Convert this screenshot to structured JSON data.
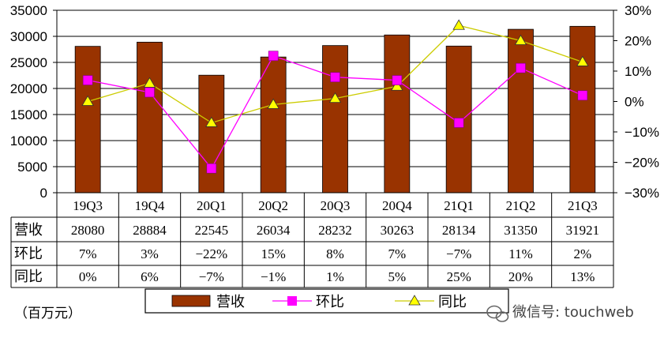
{
  "chart_data": {
    "type": "bar",
    "categories": [
      "19Q3",
      "19Q4",
      "20Q1",
      "20Q2",
      "20Q3",
      "20Q4",
      "21Q1",
      "21Q2",
      "21Q3"
    ],
    "series": [
      {
        "name": "营收",
        "type": "bar",
        "axis": "left",
        "color": "#993300",
        "values": [
          28080,
          28884,
          22545,
          26034,
          28232,
          30263,
          28134,
          31350,
          31921
        ]
      },
      {
        "name": "环比",
        "type": "line",
        "axis": "right",
        "color": "#FF00FF",
        "marker": "square",
        "values": [
          7,
          3,
          -22,
          15,
          8,
          7,
          -7,
          11,
          2
        ]
      },
      {
        "name": "同比",
        "type": "line",
        "axis": "right",
        "color": "#CCCC00",
        "marker": "triangle",
        "values": [
          0,
          6,
          -7,
          -1,
          1,
          5,
          25,
          20,
          13
        ]
      }
    ],
    "y_left": {
      "min": 0,
      "max": 35000,
      "ticks": [
        "0",
        "5000",
        "10000",
        "15000",
        "20000",
        "25000",
        "30000",
        "35000"
      ]
    },
    "y_right": {
      "min": -30,
      "max": 30,
      "ticks": [
        "-30%",
        "-20%",
        "-10%",
        "0%",
        "10%",
        "20%",
        "30%"
      ]
    },
    "table": {
      "row_labels": [
        "营收",
        "环比",
        "同比"
      ],
      "rows": [
        [
          "28080",
          "28884",
          "22545",
          "26034",
          "28232",
          "30263",
          "28134",
          "31350",
          "31921"
        ],
        [
          "7%",
          "3%",
          "−22%",
          "15%",
          "8%",
          "7%",
          "−7%",
          "11%",
          "2%"
        ],
        [
          "0%",
          "6%",
          "−7%",
          "−1%",
          "1%",
          "5%",
          "25%",
          "20%",
          "13%"
        ]
      ]
    },
    "legend": [
      "营收",
      "环比",
      "同比"
    ],
    "unit_label": "（百万元）",
    "legend_position": "bottom"
  },
  "watermark": {
    "text": "微信号: touchweb",
    "icon": "wechat-icon"
  }
}
